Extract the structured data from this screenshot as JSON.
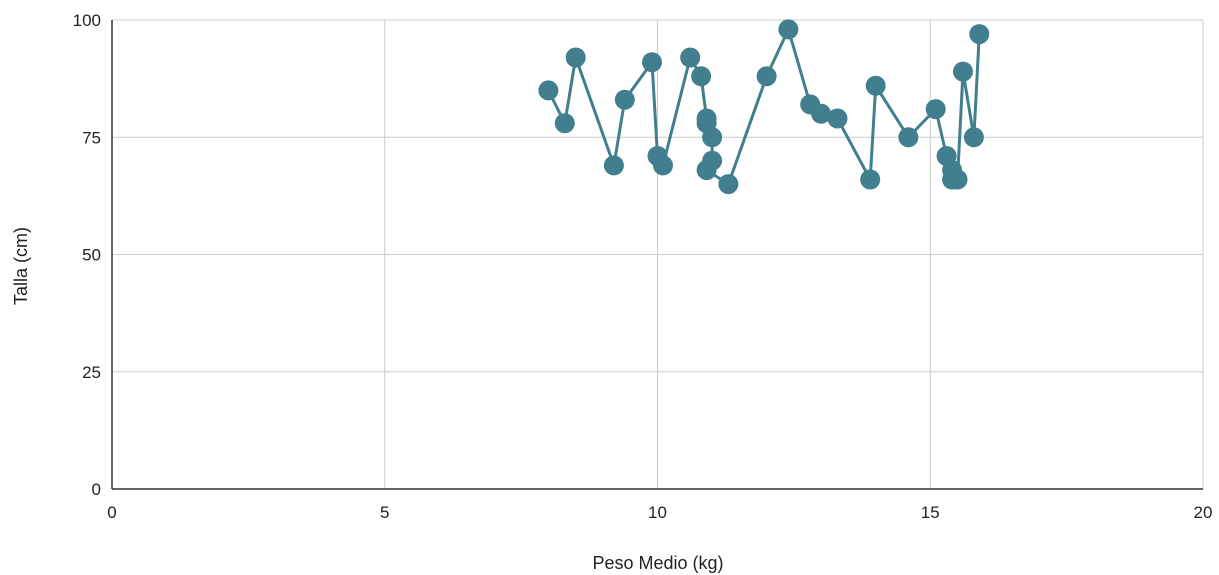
{
  "chart_data": {
    "type": "line",
    "title": "",
    "xlabel": "Peso Medio (kg)",
    "ylabel": "Talla (cm)",
    "xlim": [
      0,
      20
    ],
    "ylim": [
      0,
      100
    ],
    "x_ticks": [
      "0",
      "5",
      "10",
      "15",
      "20"
    ],
    "y_ticks": [
      "0",
      "25",
      "50",
      "75",
      "100"
    ],
    "x_tick_values": [
      0,
      5,
      10,
      15,
      20
    ],
    "y_tick_values": [
      0,
      25,
      50,
      75,
      100
    ],
    "grid": true,
    "legend": "none",
    "series": [
      {
        "color": "#417f8e",
        "points": [
          [
            8.0,
            85
          ],
          [
            8.3,
            78
          ],
          [
            8.5,
            92
          ],
          [
            9.2,
            69
          ],
          [
            9.4,
            83
          ],
          [
            9.9,
            91
          ],
          [
            10.0,
            71
          ],
          [
            10.1,
            69
          ],
          [
            10.6,
            92
          ],
          [
            10.8,
            88
          ],
          [
            10.9,
            79
          ],
          [
            10.9,
            78
          ],
          [
            11.0,
            75
          ],
          [
            11.0,
            70
          ],
          [
            10.9,
            68
          ],
          [
            11.3,
            65
          ],
          [
            12.0,
            88
          ],
          [
            12.4,
            98
          ],
          [
            12.8,
            82
          ],
          [
            13.0,
            80
          ],
          [
            13.3,
            79
          ],
          [
            13.9,
            66
          ],
          [
            14.0,
            86
          ],
          [
            14.6,
            75
          ],
          [
            15.1,
            81
          ],
          [
            15.3,
            71
          ],
          [
            15.4,
            68
          ],
          [
            15.4,
            66
          ],
          [
            15.5,
            66
          ],
          [
            15.6,
            89
          ],
          [
            15.8,
            75
          ],
          [
            15.9,
            97
          ]
        ]
      }
    ]
  }
}
